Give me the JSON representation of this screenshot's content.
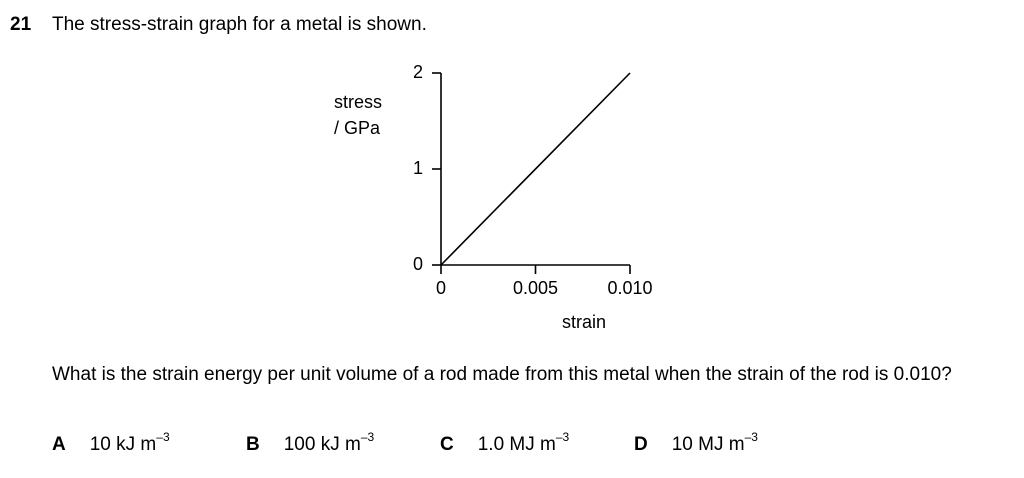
{
  "question": {
    "number": "21",
    "intro": "The stress-strain graph for a metal is shown.",
    "prompt": "What is the strain energy per unit volume of a rod made from this metal when the strain of the rod is 0.010?"
  },
  "chart_data": {
    "type": "line",
    "title": "",
    "xlabel": "strain",
    "ylabel_line1": "stress",
    "ylabel_line2": "/ GPa",
    "xlim": [
      0,
      0.01
    ],
    "ylim": [
      0,
      2
    ],
    "x_ticks": [
      0,
      0.005,
      0.01
    ],
    "x_tick_labels": [
      "0",
      "0.005",
      "0.010"
    ],
    "y_ticks": [
      0,
      1,
      2
    ],
    "y_tick_labels": [
      "0",
      "1",
      "2"
    ],
    "grid": false,
    "series": [
      {
        "x": [
          0,
          0.01
        ],
        "y": [
          0,
          2.0
        ]
      }
    ]
  },
  "options": [
    {
      "letter": "A",
      "value": "10 kJ m",
      "exponent": "–3"
    },
    {
      "letter": "B",
      "value": "100 kJ m",
      "exponent": "–3"
    },
    {
      "letter": "C",
      "value": "1.0 MJ m",
      "exponent": "–3"
    },
    {
      "letter": "D",
      "value": "10 MJ m",
      "exponent": "–3"
    }
  ]
}
